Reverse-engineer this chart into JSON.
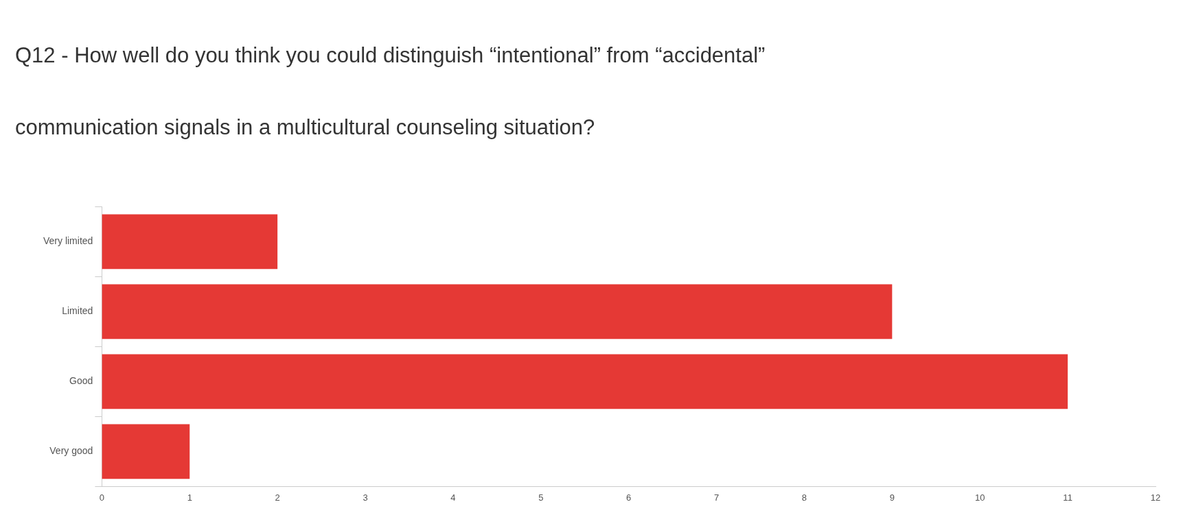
{
  "chart_data": {
    "type": "bar",
    "orientation": "horizontal",
    "title": "Q12 - How well do you think you could distinguish “intentional” from “accidental” communication signals in a multicultural counseling situation?",
    "categories": [
      "Very limited",
      "Limited",
      "Good",
      "Very good"
    ],
    "values": [
      2,
      9,
      11,
      1
    ],
    "color": "#e53935",
    "xlim": [
      0,
      12
    ],
    "xticks": [
      0,
      1,
      2,
      3,
      4,
      5,
      6,
      7,
      8,
      9,
      10,
      11,
      12
    ],
    "grid": false,
    "legend": false
  }
}
